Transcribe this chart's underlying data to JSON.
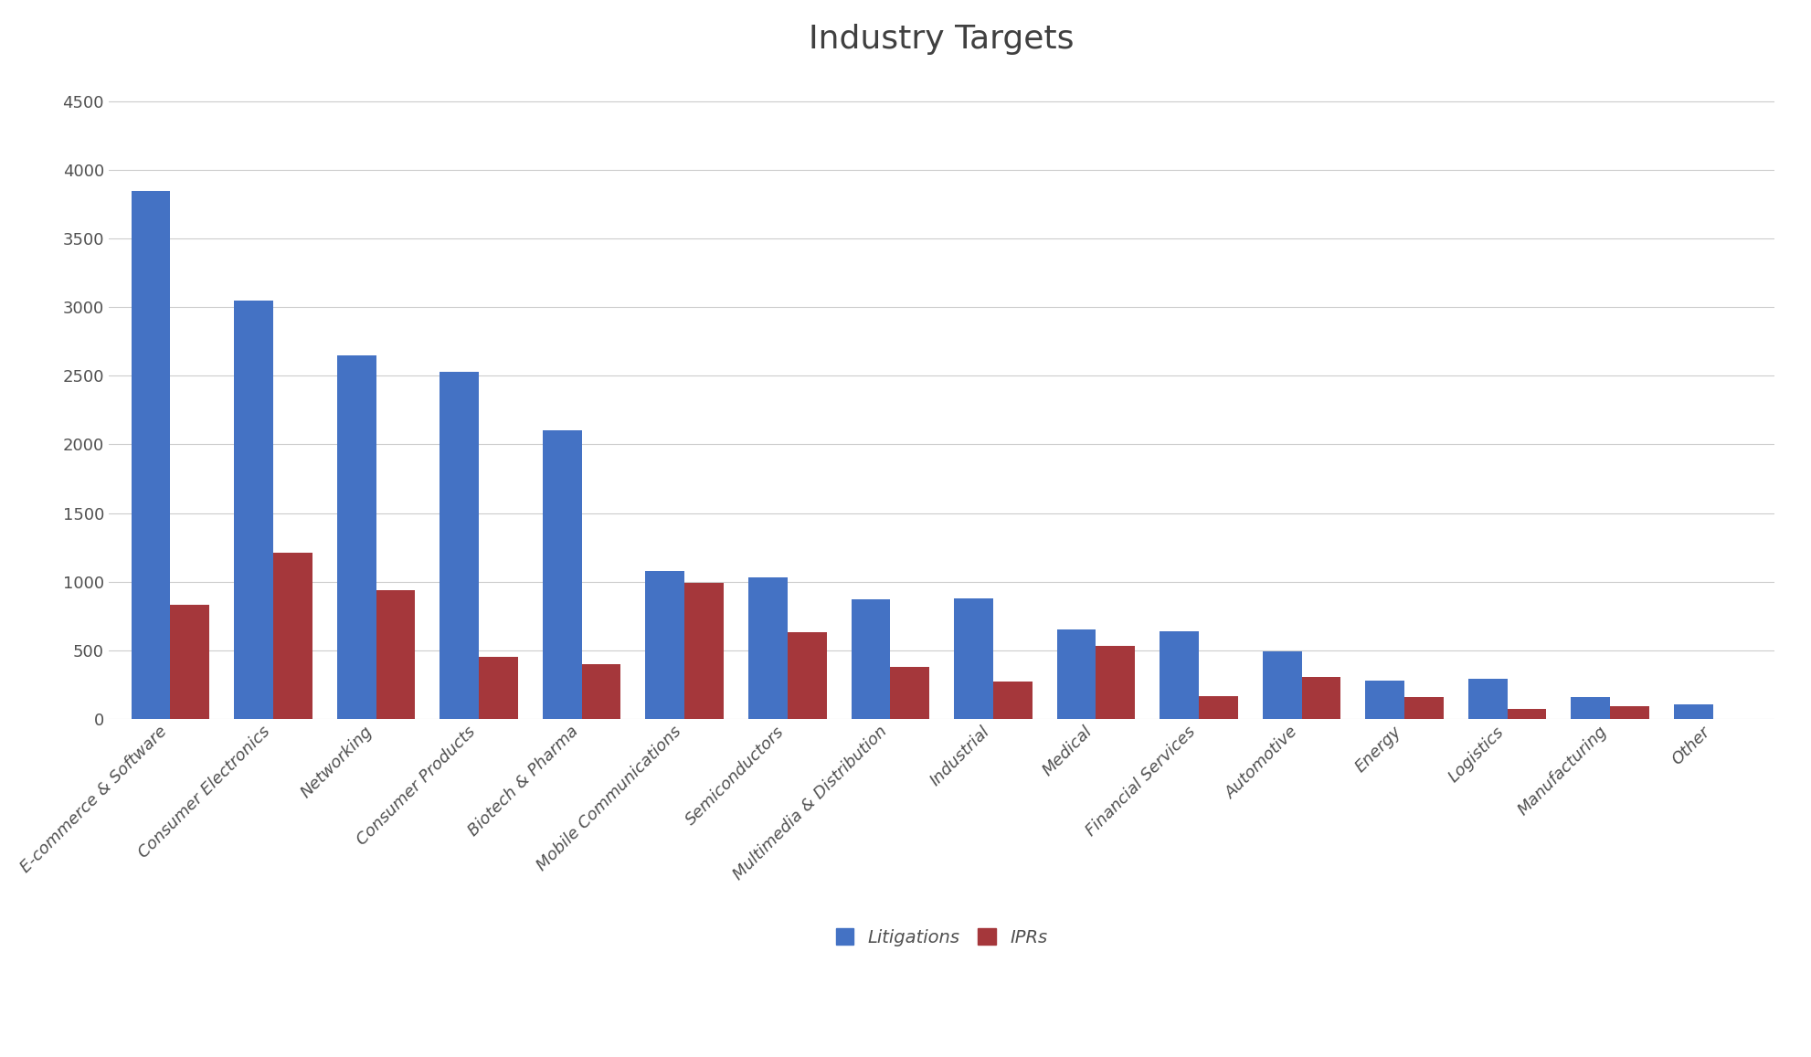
{
  "title": "Industry Targets",
  "categories": [
    "E-commerce & Software",
    "Consumer Electronics",
    "Networking",
    "Consumer Products",
    "Biotech & Pharma",
    "Mobile Communications",
    "Semiconductors",
    "Multimedia & Distribution",
    "Industrial",
    "Medical",
    "Financial Services",
    "Automotive",
    "Energy",
    "Logistics",
    "Manufacturing",
    "Other"
  ],
  "litigations": [
    3850,
    3050,
    2650,
    2530,
    2100,
    1080,
    1030,
    870,
    880,
    650,
    640,
    490,
    280,
    290,
    155,
    105
  ],
  "iprs": [
    830,
    1210,
    940,
    450,
    400,
    990,
    630,
    380,
    270,
    530,
    165,
    305,
    160,
    70,
    90,
    0
  ],
  "litigation_color": "#4472C4",
  "ipr_color": "#A5373B",
  "background_color": "#FFFFFF",
  "plot_background_color": "#FFFFFF",
  "title_fontsize": 26,
  "tick_fontsize": 13,
  "legend_fontsize": 14,
  "ylim": [
    0,
    4700
  ],
  "yticks": [
    0,
    500,
    1000,
    1500,
    2000,
    2500,
    3000,
    3500,
    4000,
    4500
  ],
  "legend_labels": [
    "Litigations",
    "IPRs"
  ],
  "bar_width": 0.38,
  "grid_color": "#CCCCCC",
  "title_color": "#404040"
}
